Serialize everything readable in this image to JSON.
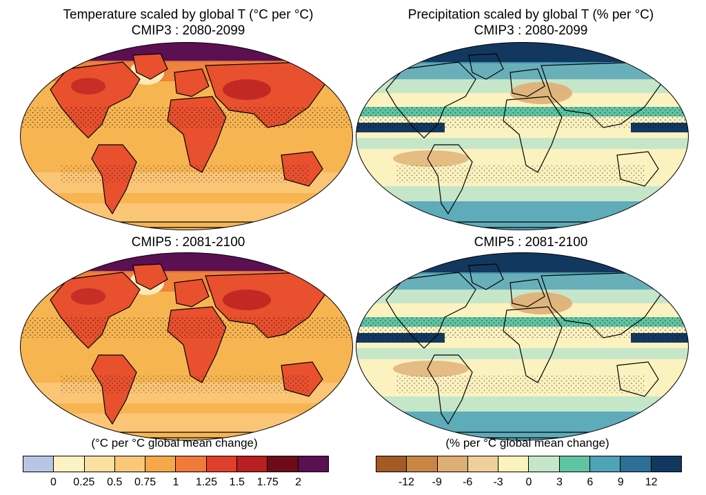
{
  "titles": {
    "temp_cmip3_line1": "Temperature scaled by global T (°C per °C)",
    "temp_cmip3_line2": "CMIP3 : 2080-2099",
    "precip_cmip3_line1": "Precipitation scaled by global T (% per °C)",
    "precip_cmip3_line2": "CMIP3 : 2080-2099",
    "temp_cmip5": "CMIP5 : 2081-2100",
    "precip_cmip5": "CMIP5 : 2081-2100"
  },
  "temperature_colorbar": {
    "label": "(°C per °C global mean change)",
    "colors": [
      "#b8c6e6",
      "#fdf2c4",
      "#fce0a0",
      "#fbc77a",
      "#f6a849",
      "#ef7a3a",
      "#e0402b",
      "#b91f22",
      "#6e0b1a",
      "#5b1052"
    ],
    "ticks": [
      "0",
      "0.25",
      "0.5",
      "0.75",
      "1",
      "1.25",
      "1.5",
      "1.75",
      "2"
    ]
  },
  "precipitation_colorbar": {
    "label": "(% per °C global mean change)",
    "colors": [
      "#a35a24",
      "#c78646",
      "#dfae74",
      "#efd09d",
      "#fcf2bf",
      "#c6e6c9",
      "#5fc4a4",
      "#4da3b8",
      "#2d6f97",
      "#13385f"
    ],
    "ticks": [
      "-12",
      "-9",
      "-6",
      "-3",
      "0",
      "3",
      "6",
      "9",
      "12"
    ]
  },
  "maps": {
    "temp_base": "#f7b552",
    "temp_ocean_band": "#fbc77a",
    "temp_land": "#e8502e",
    "temp_arctic": "#5b1052",
    "temp_hot": "#b91f22",
    "temp_cool_atlantic": "#fde9b8",
    "precip_base": "#fcf2bf",
    "precip_tropical_band": "#13385f",
    "precip_high_lat": "#4da3b8",
    "precip_mid": "#c6e6c9",
    "precip_dry": "#dfae74",
    "precip_teal": "#5fc4a4"
  }
}
